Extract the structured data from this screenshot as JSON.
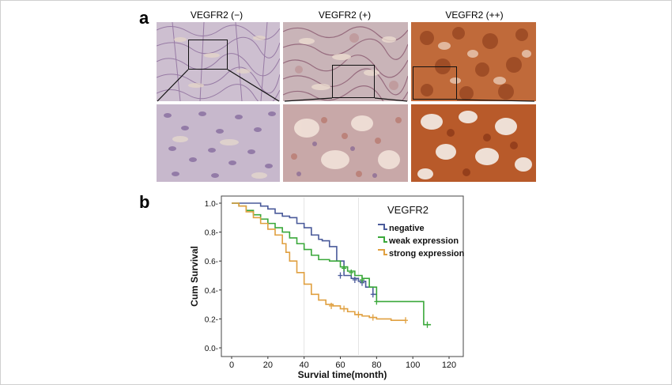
{
  "figure": {
    "panel_a_label": "a",
    "panel_b_label": "b",
    "histology": [
      {
        "title": "VEGFR2 (−)",
        "stain": "negative"
      },
      {
        "title": "VEGFR2 (+)",
        "stain": "weak"
      },
      {
        "title": "VEGFR2 (++)",
        "stain": "strong"
      }
    ]
  },
  "colors": {
    "negative": "#4a5a9a",
    "weak": "#3aa83a",
    "strong": "#e0a040"
  },
  "chart_data": {
    "type": "line",
    "step": true,
    "xlabel": "Survial time(month)",
    "ylabel": "Cum Survival",
    "xlim": [
      0,
      120
    ],
    "ylim": [
      0,
      1.0
    ],
    "xticks": [
      0,
      20,
      40,
      60,
      80,
      100,
      120
    ],
    "yticks": [
      0.0,
      0.2,
      0.4,
      0.6,
      0.8,
      1.0
    ],
    "xtick_labels": [
      "0",
      "20",
      "40",
      "60",
      "80",
      "100",
      "120"
    ],
    "ytick_labels": [
      "0.0-",
      "0.2-",
      "0.4-",
      "0.6-",
      "0.8-",
      "1.0-"
    ],
    "legend_title": "VEGFR2",
    "legend_position": "top-right",
    "series": [
      {
        "name": "negative",
        "color": "#4a5a9a",
        "x": [
          0,
          16,
          20,
          24,
          28,
          32,
          36,
          40,
          44,
          48,
          50,
          54,
          58,
          62,
          66,
          70,
          74,
          78,
          80
        ],
        "y": [
          1.0,
          0.98,
          0.96,
          0.93,
          0.91,
          0.9,
          0.86,
          0.83,
          0.78,
          0.75,
          0.74,
          0.7,
          0.6,
          0.5,
          0.48,
          0.46,
          0.42,
          0.37,
          0.37
        ],
        "censor_x": [
          60,
          68,
          72,
          78
        ],
        "censor_y": [
          0.5,
          0.47,
          0.45,
          0.37
        ]
      },
      {
        "name": "weak expression",
        "color": "#3aa83a",
        "x": [
          0,
          4,
          8,
          12,
          16,
          20,
          24,
          28,
          32,
          36,
          40,
          44,
          48,
          54,
          60,
          64,
          68,
          72,
          76,
          80,
          92,
          102,
          106,
          110
        ],
        "y": [
          1.0,
          0.98,
          0.95,
          0.92,
          0.89,
          0.86,
          0.83,
          0.8,
          0.76,
          0.72,
          0.68,
          0.64,
          0.61,
          0.6,
          0.56,
          0.53,
          0.5,
          0.48,
          0.42,
          0.32,
          0.32,
          0.32,
          0.16,
          0.16
        ],
        "censor_x": [
          62,
          66,
          72,
          80,
          108
        ],
        "censor_y": [
          0.55,
          0.52,
          0.47,
          0.32,
          0.16
        ]
      },
      {
        "name": "strong expression",
        "color": "#e0a040",
        "x": [
          0,
          4,
          8,
          12,
          16,
          20,
          24,
          28,
          30,
          32,
          36,
          40,
          44,
          48,
          52,
          56,
          60,
          64,
          68,
          72,
          76,
          80,
          88,
          96
        ],
        "y": [
          1.0,
          0.98,
          0.94,
          0.9,
          0.86,
          0.82,
          0.78,
          0.72,
          0.66,
          0.6,
          0.52,
          0.44,
          0.37,
          0.33,
          0.3,
          0.29,
          0.27,
          0.25,
          0.23,
          0.22,
          0.21,
          0.2,
          0.19,
          0.19
        ],
        "censor_x": [
          55,
          62,
          70,
          78,
          96
        ],
        "censor_y": [
          0.29,
          0.27,
          0.23,
          0.21,
          0.19
        ]
      }
    ]
  }
}
